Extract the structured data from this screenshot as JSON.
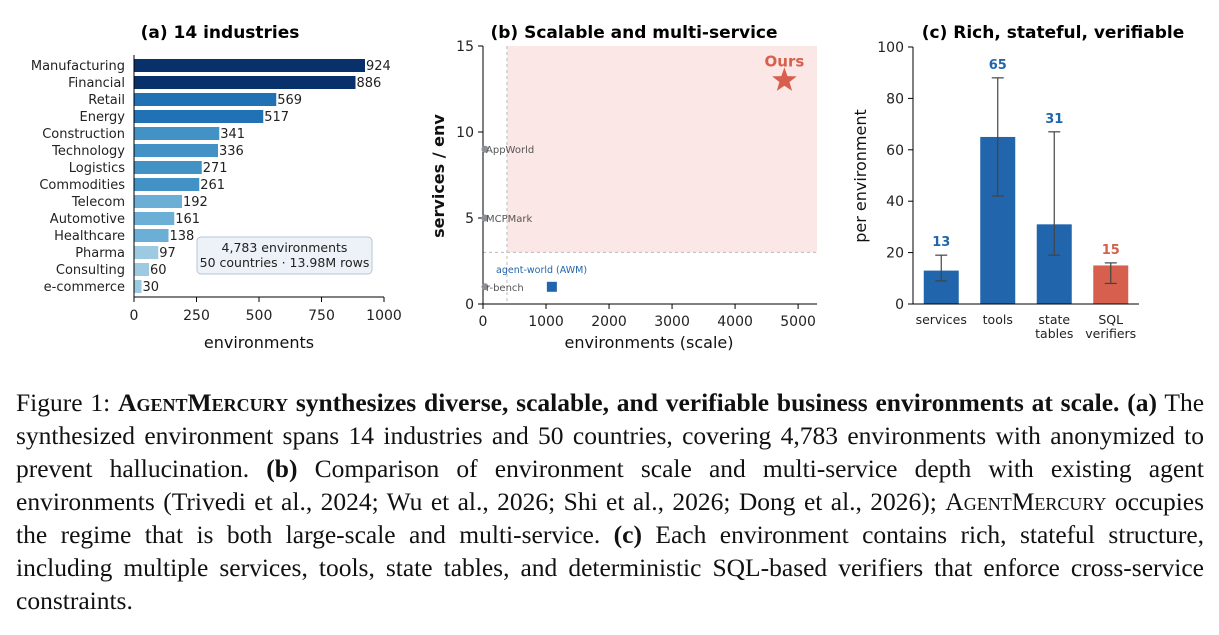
{
  "chart_data": [
    {
      "type": "bar",
      "orientation": "horizontal",
      "title": "(a) 14 industries",
      "xlabel": "environments",
      "xlim": [
        0,
        1000
      ],
      "xticks": [
        0,
        250,
        500,
        750,
        1000
      ],
      "categories": [
        "Manufacturing",
        "Financial",
        "Retail",
        "Energy",
        "Construction",
        "Technology",
        "Logistics",
        "Commodities",
        "Telecom",
        "Automotive",
        "Healthcare",
        "Pharma",
        "Consulting",
        "e-commerce"
      ],
      "values": [
        924,
        886,
        569,
        517,
        341,
        336,
        271,
        261,
        192,
        161,
        138,
        97,
        60,
        30
      ],
      "annotation": [
        "4,783 environments",
        "50 countries · 13.98M rows"
      ],
      "colors": [
        "#08306b",
        "#08306b",
        "#2171b5",
        "#2171b5",
        "#4292c6",
        "#4292c6",
        "#4292c6",
        "#4292c6",
        "#6baed6",
        "#6baed6",
        "#6baed6",
        "#9ecae1",
        "#9ecae1",
        "#9ecae1"
      ]
    },
    {
      "type": "scatter",
      "title": "(b) Scalable and multi-service",
      "xlabel": "environments (scale)",
      "ylabel": "services / env",
      "xlim": [
        0,
        5300
      ],
      "ylim": [
        0,
        15
      ],
      "xticks": [
        0,
        1000,
        2000,
        3000,
        4000,
        5000
      ],
      "yticks": [
        0,
        5,
        10,
        15
      ],
      "region": {
        "x_from": 380,
        "y_from": 3
      },
      "points": [
        {
          "label": "AppWorld",
          "x": 0,
          "y": 9,
          "marker": "circle",
          "color": "#8a8f99"
        },
        {
          "label": "MCPMark",
          "x": 0,
          "y": 5,
          "marker": "circle",
          "color": "#8a8f99"
        },
        {
          "label": "r-bench",
          "x": 0,
          "y": 1,
          "marker": "circle",
          "color": "#8a8f99"
        },
        {
          "label": "agent-world (AWM)",
          "x": 950,
          "y": 1,
          "marker": "square",
          "color": "#2166ac"
        },
        {
          "label": "Ours",
          "x": 4783,
          "y": 13,
          "marker": "star",
          "color": "#d6604d"
        }
      ]
    },
    {
      "type": "bar",
      "title": "(c) Rich, stateful, verifiable",
      "ylabel": "per environment",
      "ylim": [
        0,
        100
      ],
      "yticks": [
        0,
        20,
        40,
        60,
        80,
        100
      ],
      "categories": [
        "services",
        "tools",
        "state\ntables",
        "SQL\nverifiers"
      ],
      "values": [
        13,
        65,
        31,
        15
      ],
      "error_low": [
        9,
        42,
        19,
        8
      ],
      "error_high": [
        19,
        88,
        67,
        16
      ],
      "value_labels": [
        "13",
        "65",
        "31",
        "15"
      ],
      "colors": [
        "#2166ac",
        "#2166ac",
        "#2166ac",
        "#d6604d"
      ]
    }
  ],
  "caption": {
    "fig_label": "Figure 1:",
    "name_a": "Agent",
    "name_b": "Mercury",
    "bold_rest": "synthesizes diverse, scalable, and verifiable business environments at scale.",
    "a_label": "(a)",
    "a_text": "The synthesized environment spans 14 industries and 50 countries, covering 4,783 environments with anonymized to prevent hallucination.",
    "b_label": "(b)",
    "b_text": "Comparison of environment scale and multi-service depth with existing agent environments (Trivedi et al., 2024; Wu et al., 2026; Shi et al., 2026; Dong et al., 2026);",
    "b_name_a": "Agent",
    "b_name_b": "Mercury",
    "b_text2": "occupies the regime that is both large-scale and multi-service.",
    "c_label": "(c)",
    "c_text": "Each environment contains rich, stateful structure, including multiple services, tools, state tables, and deterministic SQL-based verifiers that enforce cross-service constraints."
  }
}
